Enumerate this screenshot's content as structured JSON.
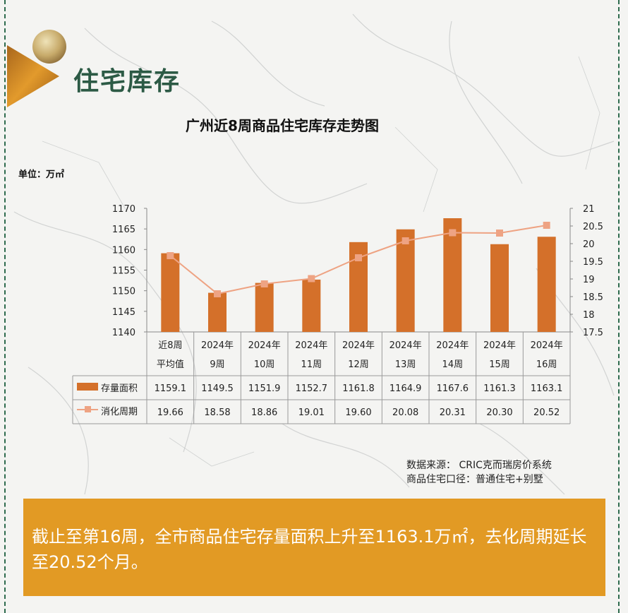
{
  "section_title": "住宅库存",
  "unit": "单位：万㎡",
  "chart_data": {
    "type": "bar",
    "title": "广州近8周商品住宅库存走势图",
    "categories": [
      [
        "近8周",
        "平均值"
      ],
      [
        "2024年",
        "9周"
      ],
      [
        "2024年",
        "10周"
      ],
      [
        "2024年",
        "11周"
      ],
      [
        "2024年",
        "12周"
      ],
      [
        "2024年",
        "13周"
      ],
      [
        "2024年",
        "14周"
      ],
      [
        "2024年",
        "15周"
      ],
      [
        "2024年",
        "16周"
      ]
    ],
    "series": [
      {
        "name": "存量面积",
        "type": "bar",
        "axis": "left",
        "color": "#d4702a",
        "values": [
          1159.1,
          1149.5,
          1151.9,
          1152.7,
          1161.8,
          1164.9,
          1167.6,
          1161.3,
          1163.1
        ],
        "labels": [
          "1159.1",
          "1149.5",
          "1151.9",
          "1152.7",
          "1161.8",
          "1164.9",
          "1167.6",
          "1161.3",
          "1163.1"
        ]
      },
      {
        "name": "消化周期",
        "type": "line",
        "axis": "right",
        "color": "#eea383",
        "values": [
          19.66,
          18.58,
          18.86,
          19.01,
          19.6,
          20.08,
          20.31,
          20.3,
          20.52
        ],
        "labels": [
          "19.66",
          "18.58",
          "18.86",
          "19.01",
          "19.60",
          "20.08",
          "20.31",
          "20.30",
          "20.52"
        ]
      }
    ],
    "y_left": {
      "min": 1140,
      "max": 1170,
      "ticks": [
        "1140",
        "1145",
        "1150",
        "1155",
        "1160",
        "1165",
        "1170"
      ]
    },
    "y_right": {
      "min": 17.5,
      "max": 21,
      "ticks": [
        "17.5",
        "18",
        "18.5",
        "19",
        "19.5",
        "20",
        "20.5",
        "21"
      ]
    },
    "grid": false,
    "legend": "data-table"
  },
  "source": {
    "line1": "数据来源： CRIC克而瑞房价系统",
    "line2": "商品住宅口径：普通住宅+别墅"
  },
  "note": "截止至第16周，全市商品住宅存量面积上升至1163.1万㎡，去化周期延长至20.52个月。",
  "colors": {
    "bar": "#d4702a",
    "line": "#eea383",
    "title_green": "#2c5a45",
    "note_bg": "#e29a24",
    "frame": "#2e6b4e"
  }
}
